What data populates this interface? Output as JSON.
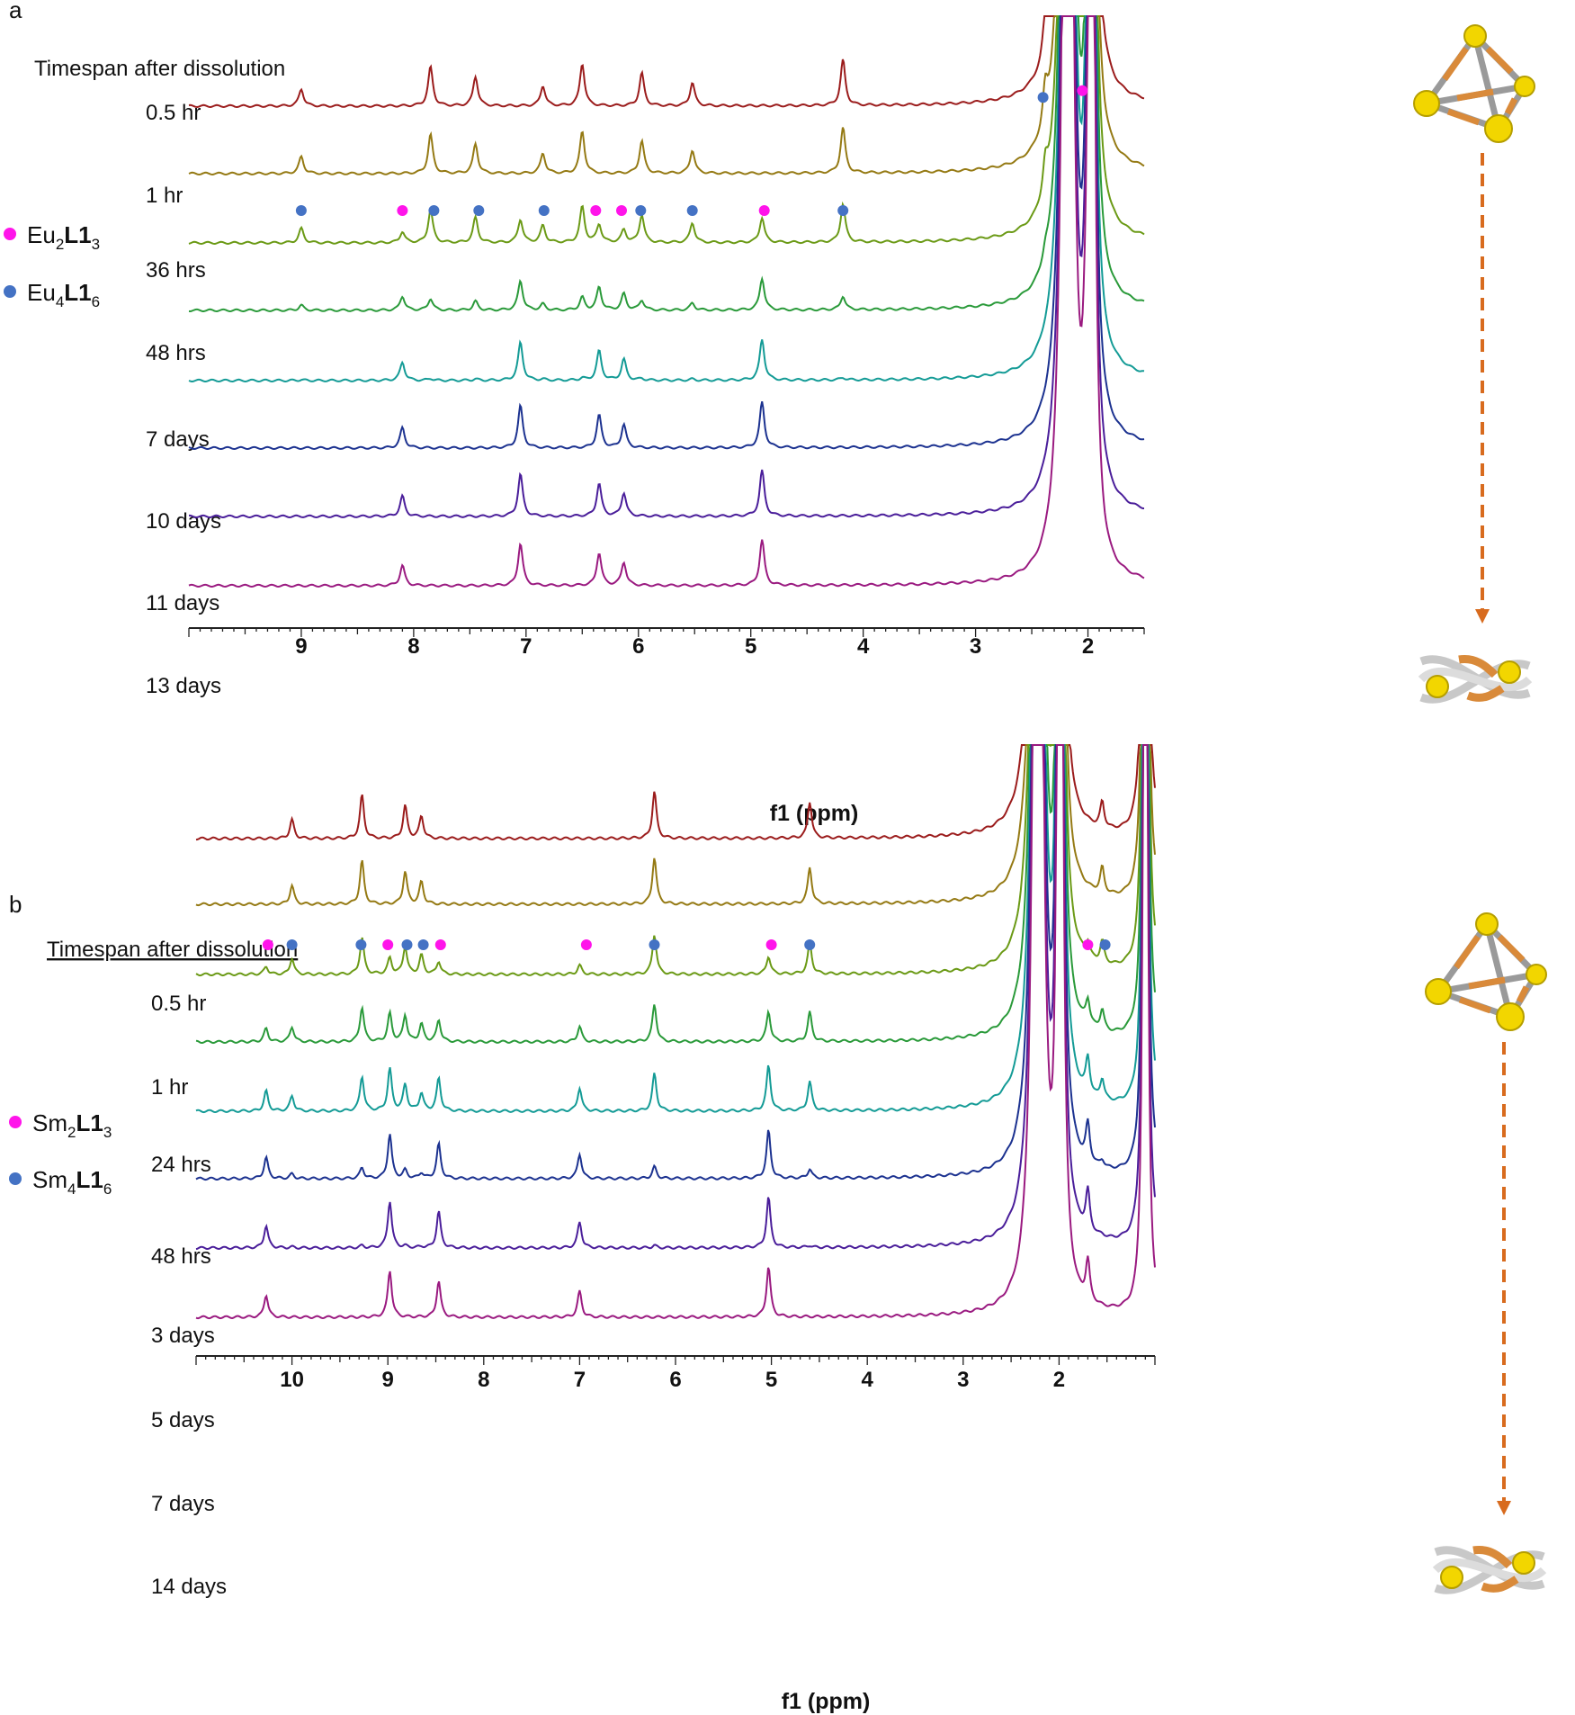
{
  "figure": {
    "colors": {
      "magenta": "#ff14ea",
      "blue": "#4472c4",
      "arrow": "#d86b1e",
      "axis": "#222222",
      "sphere": "#f2d600",
      "strut": "#d98a3a"
    }
  },
  "chart_data": [
    {
      "type": "line",
      "panel": "a",
      "heading": "Timespan  after dissolution",
      "xlabel": "f1 (ppm)",
      "xlim": [
        10.0,
        1.5
      ],
      "xticks": [
        9,
        8,
        7,
        6,
        5,
        4,
        3,
        2
      ],
      "legend": [
        {
          "label_pre": "Eu",
          "sub1": "2",
          "bold": "L1",
          "sub2": "3",
          "color": "magenta"
        },
        {
          "label_pre": "Eu",
          "sub1": "4",
          "bold": "L1",
          "sub2": "6",
          "color": "blue"
        }
      ],
      "series": [
        {
          "name": "0.5 hr",
          "color": "#9b1c1c"
        },
        {
          "name": "1 hr",
          "color": "#957a14"
        },
        {
          "name": "36 hrs",
          "color": "#6b9a16"
        },
        {
          "name": "48 hrs",
          "color": "#2a9a3a"
        },
        {
          "name": "7 days",
          "color": "#149b96"
        },
        {
          "name": "10 days",
          "color": "#1c3290"
        },
        {
          "name": "11 days",
          "color": "#4a1e9a"
        },
        {
          "name": "13 days",
          "color": "#9a1a80"
        }
      ],
      "species": [
        {
          "name": "Eu4L16",
          "peaks": [
            9.0,
            7.85,
            7.45,
            6.85,
            6.5,
            5.97,
            5.52,
            4.18,
            2.38
          ],
          "height": [
            1.0,
            1.0,
            0.85,
            0.3,
            0.05,
            0.0,
            0.0,
            0.0
          ]
        },
        {
          "name": "Eu2L13",
          "peaks": [
            8.1,
            7.05,
            6.35,
            6.13,
            4.9,
            2.03
          ],
          "height": [
            0.0,
            0.0,
            0.55,
            0.7,
            0.9,
            1.0,
            1.0,
            1.0
          ]
        }
      ],
      "markers": [
        {
          "ppm": 9.0,
          "species": "blue",
          "row": 2
        },
        {
          "ppm": 8.1,
          "species": "magenta",
          "row": 2
        },
        {
          "ppm": 7.82,
          "species": "blue",
          "row": 2
        },
        {
          "ppm": 7.42,
          "species": "blue",
          "row": 2
        },
        {
          "ppm": 6.84,
          "species": "blue",
          "row": 2
        },
        {
          "ppm": 6.38,
          "species": "magenta",
          "row": 2
        },
        {
          "ppm": 6.15,
          "species": "magenta",
          "row": 2
        },
        {
          "ppm": 5.98,
          "species": "blue",
          "row": 2
        },
        {
          "ppm": 5.52,
          "species": "blue",
          "row": 2
        },
        {
          "ppm": 4.88,
          "species": "magenta",
          "row": 2
        },
        {
          "ppm": 4.18,
          "species": "blue",
          "row": 2
        },
        {
          "ppm": 2.4,
          "species": "blue",
          "row": 1.65
        },
        {
          "ppm": 2.05,
          "species": "magenta",
          "row": 1.75
        }
      ]
    },
    {
      "type": "line",
      "panel": "b",
      "heading": "Timespan  after dissolution",
      "xlabel": "f1 (ppm)",
      "xlim": [
        11.0,
        1.0
      ],
      "xticks": [
        10,
        9,
        8,
        7,
        6,
        5,
        4,
        3,
        2
      ],
      "legend": [
        {
          "label_pre": "Sm",
          "sub1": "2",
          "bold": "L1",
          "sub2": "3",
          "color": "magenta"
        },
        {
          "label_pre": "Sm",
          "sub1": "4",
          "bold": "L1",
          "sub2": "6",
          "color": "blue"
        }
      ],
      "series": [
        {
          "name": "0.5 hr",
          "color": "#9b1c1c"
        },
        {
          "name": "1 hr",
          "color": "#957a14"
        },
        {
          "name": "24 hrs",
          "color": "#6b9a16"
        },
        {
          "name": "48 hrs",
          "color": "#2a9a3a"
        },
        {
          "name": "3 days",
          "color": "#149b96"
        },
        {
          "name": "5 days",
          "color": "#1c3290"
        },
        {
          "name": "7 days",
          "color": "#4a1e9a"
        },
        {
          "name": "14 days",
          "color": "#9a1a80"
        }
      ],
      "species": [
        {
          "name": "Sm4L16",
          "peaks": [
            10.0,
            9.27,
            8.82,
            8.65,
            6.22,
            4.6,
            1.55
          ],
          "height": [
            1.0,
            1.0,
            0.85,
            0.8,
            0.8,
            0.25,
            0.05,
            0.0
          ]
        },
        {
          "name": "Sm2L13",
          "peaks": [
            10.27,
            8.98,
            8.47,
            7.0,
            5.03,
            1.7
          ],
          "height": [
            0.0,
            0.0,
            0.35,
            0.6,
            0.9,
            0.95,
            1.0,
            1.0
          ]
        }
      ],
      "markers": [
        {
          "ppm": 10.25,
          "species": "magenta",
          "row": 2
        },
        {
          "ppm": 10.0,
          "species": "blue",
          "row": 2
        },
        {
          "ppm": 9.28,
          "species": "blue",
          "row": 2
        },
        {
          "ppm": 9.0,
          "species": "magenta",
          "row": 2
        },
        {
          "ppm": 8.8,
          "species": "blue",
          "row": 2
        },
        {
          "ppm": 8.63,
          "species": "blue",
          "row": 2
        },
        {
          "ppm": 8.45,
          "species": "magenta",
          "row": 2
        },
        {
          "ppm": 6.93,
          "species": "magenta",
          "row": 2
        },
        {
          "ppm": 6.22,
          "species": "blue",
          "row": 2
        },
        {
          "ppm": 5.0,
          "species": "magenta",
          "row": 2
        },
        {
          "ppm": 4.6,
          "species": "blue",
          "row": 2
        },
        {
          "ppm": 1.7,
          "species": "magenta",
          "row": 2
        },
        {
          "ppm": 1.52,
          "species": "blue",
          "row": 2
        }
      ]
    }
  ]
}
